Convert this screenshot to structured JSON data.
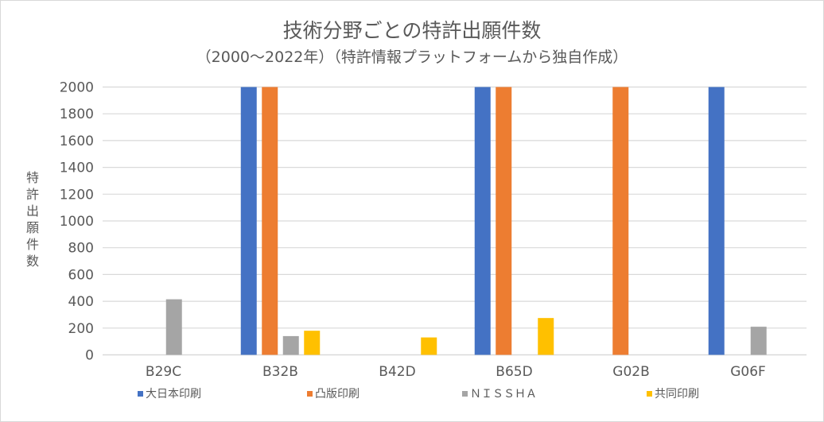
{
  "chart_data": {
    "type": "bar",
    "title": "技術分野ごとの特許出願件数",
    "subtitle": "（2000〜2022年）（特許情報プラットフォームから独自作成）",
    "xlabel": "",
    "ylabel": "特許出願件数",
    "ylim": [
      0,
      2000
    ],
    "yticks": [
      0,
      200,
      400,
      600,
      800,
      1000,
      1200,
      1400,
      1600,
      1800,
      2000
    ],
    "grid": true,
    "legend_position": "bottom",
    "categories": [
      "B29C",
      "B32B",
      "B42D",
      "B65D",
      "G02B",
      "G06F"
    ],
    "series": [
      {
        "name": "大日本印刷",
        "color": "#4472c4",
        "values": [
          0,
          2000,
          0,
          2000,
          0,
          2000
        ]
      },
      {
        "name": "凸版印刷",
        "color": "#ed7d31",
        "values": [
          0,
          2000,
          0,
          2000,
          2000,
          0
        ]
      },
      {
        "name": "ＮＩＳＳＨＡ",
        "color": "#a5a5a5",
        "values": [
          415,
          140,
          0,
          0,
          0,
          210
        ]
      },
      {
        "name": "共同印刷",
        "color": "#ffc000",
        "values": [
          0,
          180,
          130,
          275,
          0,
          0
        ]
      }
    ]
  }
}
